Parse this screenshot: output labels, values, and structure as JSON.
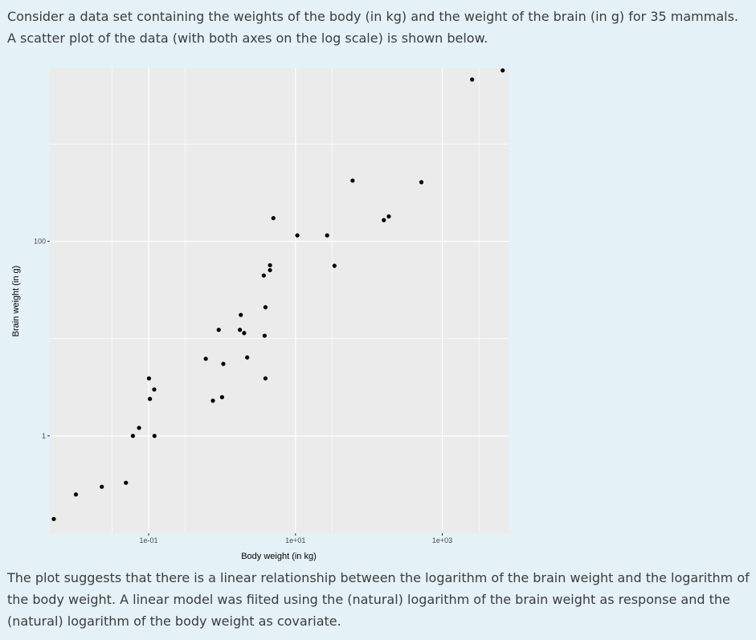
{
  "intro_text": "Consider a data set containing the weights of the body (in kg) and the weight of the brain (in g) for 35 mammals. A scatter plot of the data (with both axes on the log scale) is shown below.",
  "outro_text": "The plot suggests that there is a linear relationship between the logarithm of the brain weight and the logarithm of the body weight. A linear model was fiited using the (natural) logarithm of the brain weight as response and the (natural) logarithm of the body weight as covariate.",
  "colors": {
    "page_bg": "#e4f1f6",
    "panel_bg": "#ebebeb",
    "grid": "#ffffff",
    "point": "#000000"
  },
  "chart_data": {
    "type": "scatter",
    "xlabel": "Body weight (in kg)",
    "ylabel": "Brain weight (in g)",
    "x_scale": "log10",
    "y_scale": "log10",
    "xlim": [
      0.0045,
      8000
    ],
    "ylim": [
      0.1,
      6000
    ],
    "x_ticks": [
      {
        "value": 0.1,
        "label": "1e-01"
      },
      {
        "value": 10,
        "label": "1e+01"
      },
      {
        "value": 1000,
        "label": "1e+03"
      }
    ],
    "y_ticks": [
      {
        "value": 1,
        "label": "1"
      },
      {
        "value": 100,
        "label": "100"
      }
    ],
    "grid": true,
    "points": [
      {
        "x": 0.0051,
        "y": 0.14
      },
      {
        "x": 0.0102,
        "y": 0.25
      },
      {
        "x": 0.023,
        "y": 0.3
      },
      {
        "x": 0.049,
        "y": 0.33
      },
      {
        "x": 0.061,
        "y": 1.0
      },
      {
        "x": 0.074,
        "y": 1.21
      },
      {
        "x": 0.101,
        "y": 3.9
      },
      {
        "x": 0.104,
        "y": 2.4
      },
      {
        "x": 0.119,
        "y": 3.0
      },
      {
        "x": 0.12,
        "y": 1.0
      },
      {
        "x": 0.6,
        "y": 6.2
      },
      {
        "x": 0.75,
        "y": 2.3
      },
      {
        "x": 0.9,
        "y": 12.3
      },
      {
        "x": 1.04,
        "y": 5.5
      },
      {
        "x": 1.0,
        "y": 2.5
      },
      {
        "x": 1.75,
        "y": 12.3
      },
      {
        "x": 1.8,
        "y": 17.5
      },
      {
        "x": 2.0,
        "y": 11.4
      },
      {
        "x": 2.2,
        "y": 6.4
      },
      {
        "x": 3.7,
        "y": 44.5
      },
      {
        "x": 3.9,
        "y": 21.0
      },
      {
        "x": 3.8,
        "y": 10.7
      },
      {
        "x": 3.9,
        "y": 3.9
      },
      {
        "x": 4.5,
        "y": 56.7
      },
      {
        "x": 4.5,
        "y": 50.5
      },
      {
        "x": 5.0,
        "y": 173.0
      },
      {
        "x": 10.6,
        "y": 115.0
      },
      {
        "x": 27.0,
        "y": 115.0
      },
      {
        "x": 34.0,
        "y": 56.0
      },
      {
        "x": 60.0,
        "y": 420.0
      },
      {
        "x": 160.0,
        "y": 165.0
      },
      {
        "x": 187.0,
        "y": 180.0
      },
      {
        "x": 520.0,
        "y": 405.0
      },
      {
        "x": 2550.0,
        "y": 4600.0
      },
      {
        "x": 6650.0,
        "y": 5700.0
      }
    ]
  }
}
